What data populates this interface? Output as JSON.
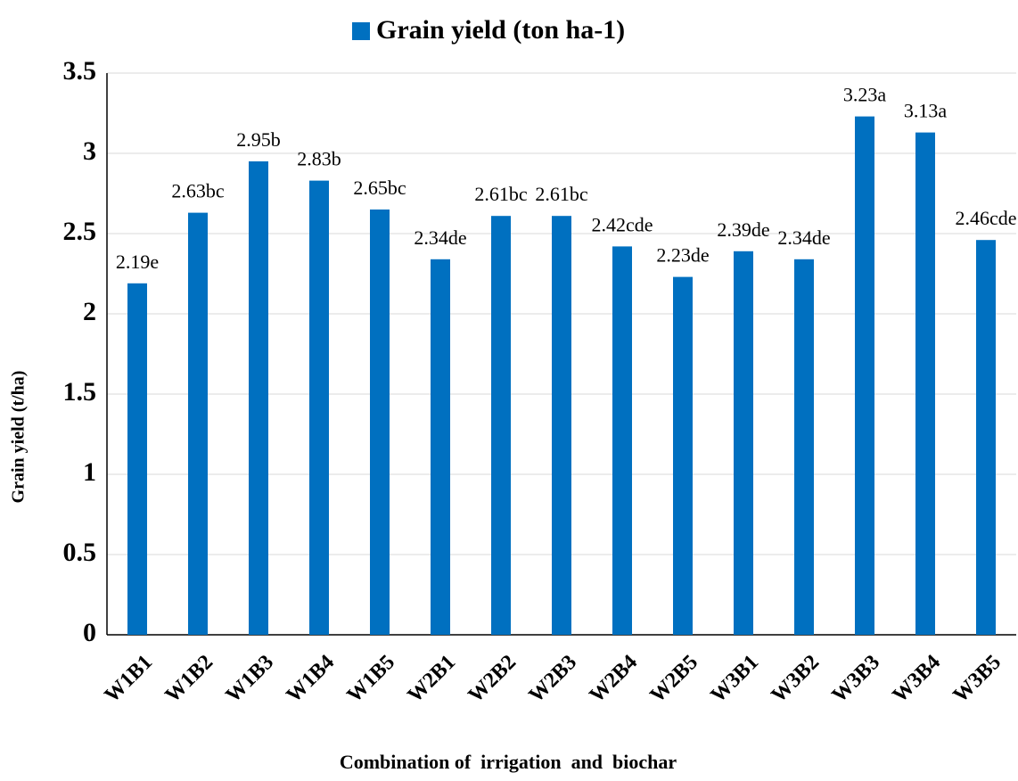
{
  "chart_data": {
    "type": "bar",
    "title": null,
    "categories": [
      "W1B1",
      "W1B2",
      "W1B3",
      "W1B4",
      "W1B5",
      "W2B1",
      "W2B2",
      "W2B3",
      "W2B4",
      "W2B5",
      "W3B1",
      "W3B2",
      "W3B3",
      "W3B4",
      "W3B5"
    ],
    "series": [
      {
        "name": "Grain yield (ton ha-1)",
        "color": "#0070c0",
        "values": [
          2.19,
          2.63,
          2.95,
          2.83,
          2.65,
          2.34,
          2.61,
          2.61,
          2.42,
          2.23,
          2.39,
          2.34,
          3.23,
          3.13,
          2.46
        ],
        "value_labels": [
          "2.19e",
          "2.63bc",
          "2.95b",
          "2.83b",
          "2.65bc",
          "2.34de",
          "2.61bc",
          "2.61bc",
          "2.42cde",
          "2.23de",
          "2.39de",
          "2.34de",
          "3.23a",
          "3.13a",
          "2.46cde"
        ]
      }
    ],
    "x_label": "Combination of  irrigation  and  biochar",
    "y_label": "Grain yield (t/ha)",
    "ylim": [
      0,
      3.5
    ],
    "yticks": [
      0,
      0.5,
      1,
      1.5,
      2,
      2.5,
      3,
      3.5
    ],
    "grid": true,
    "legend": "top"
  }
}
